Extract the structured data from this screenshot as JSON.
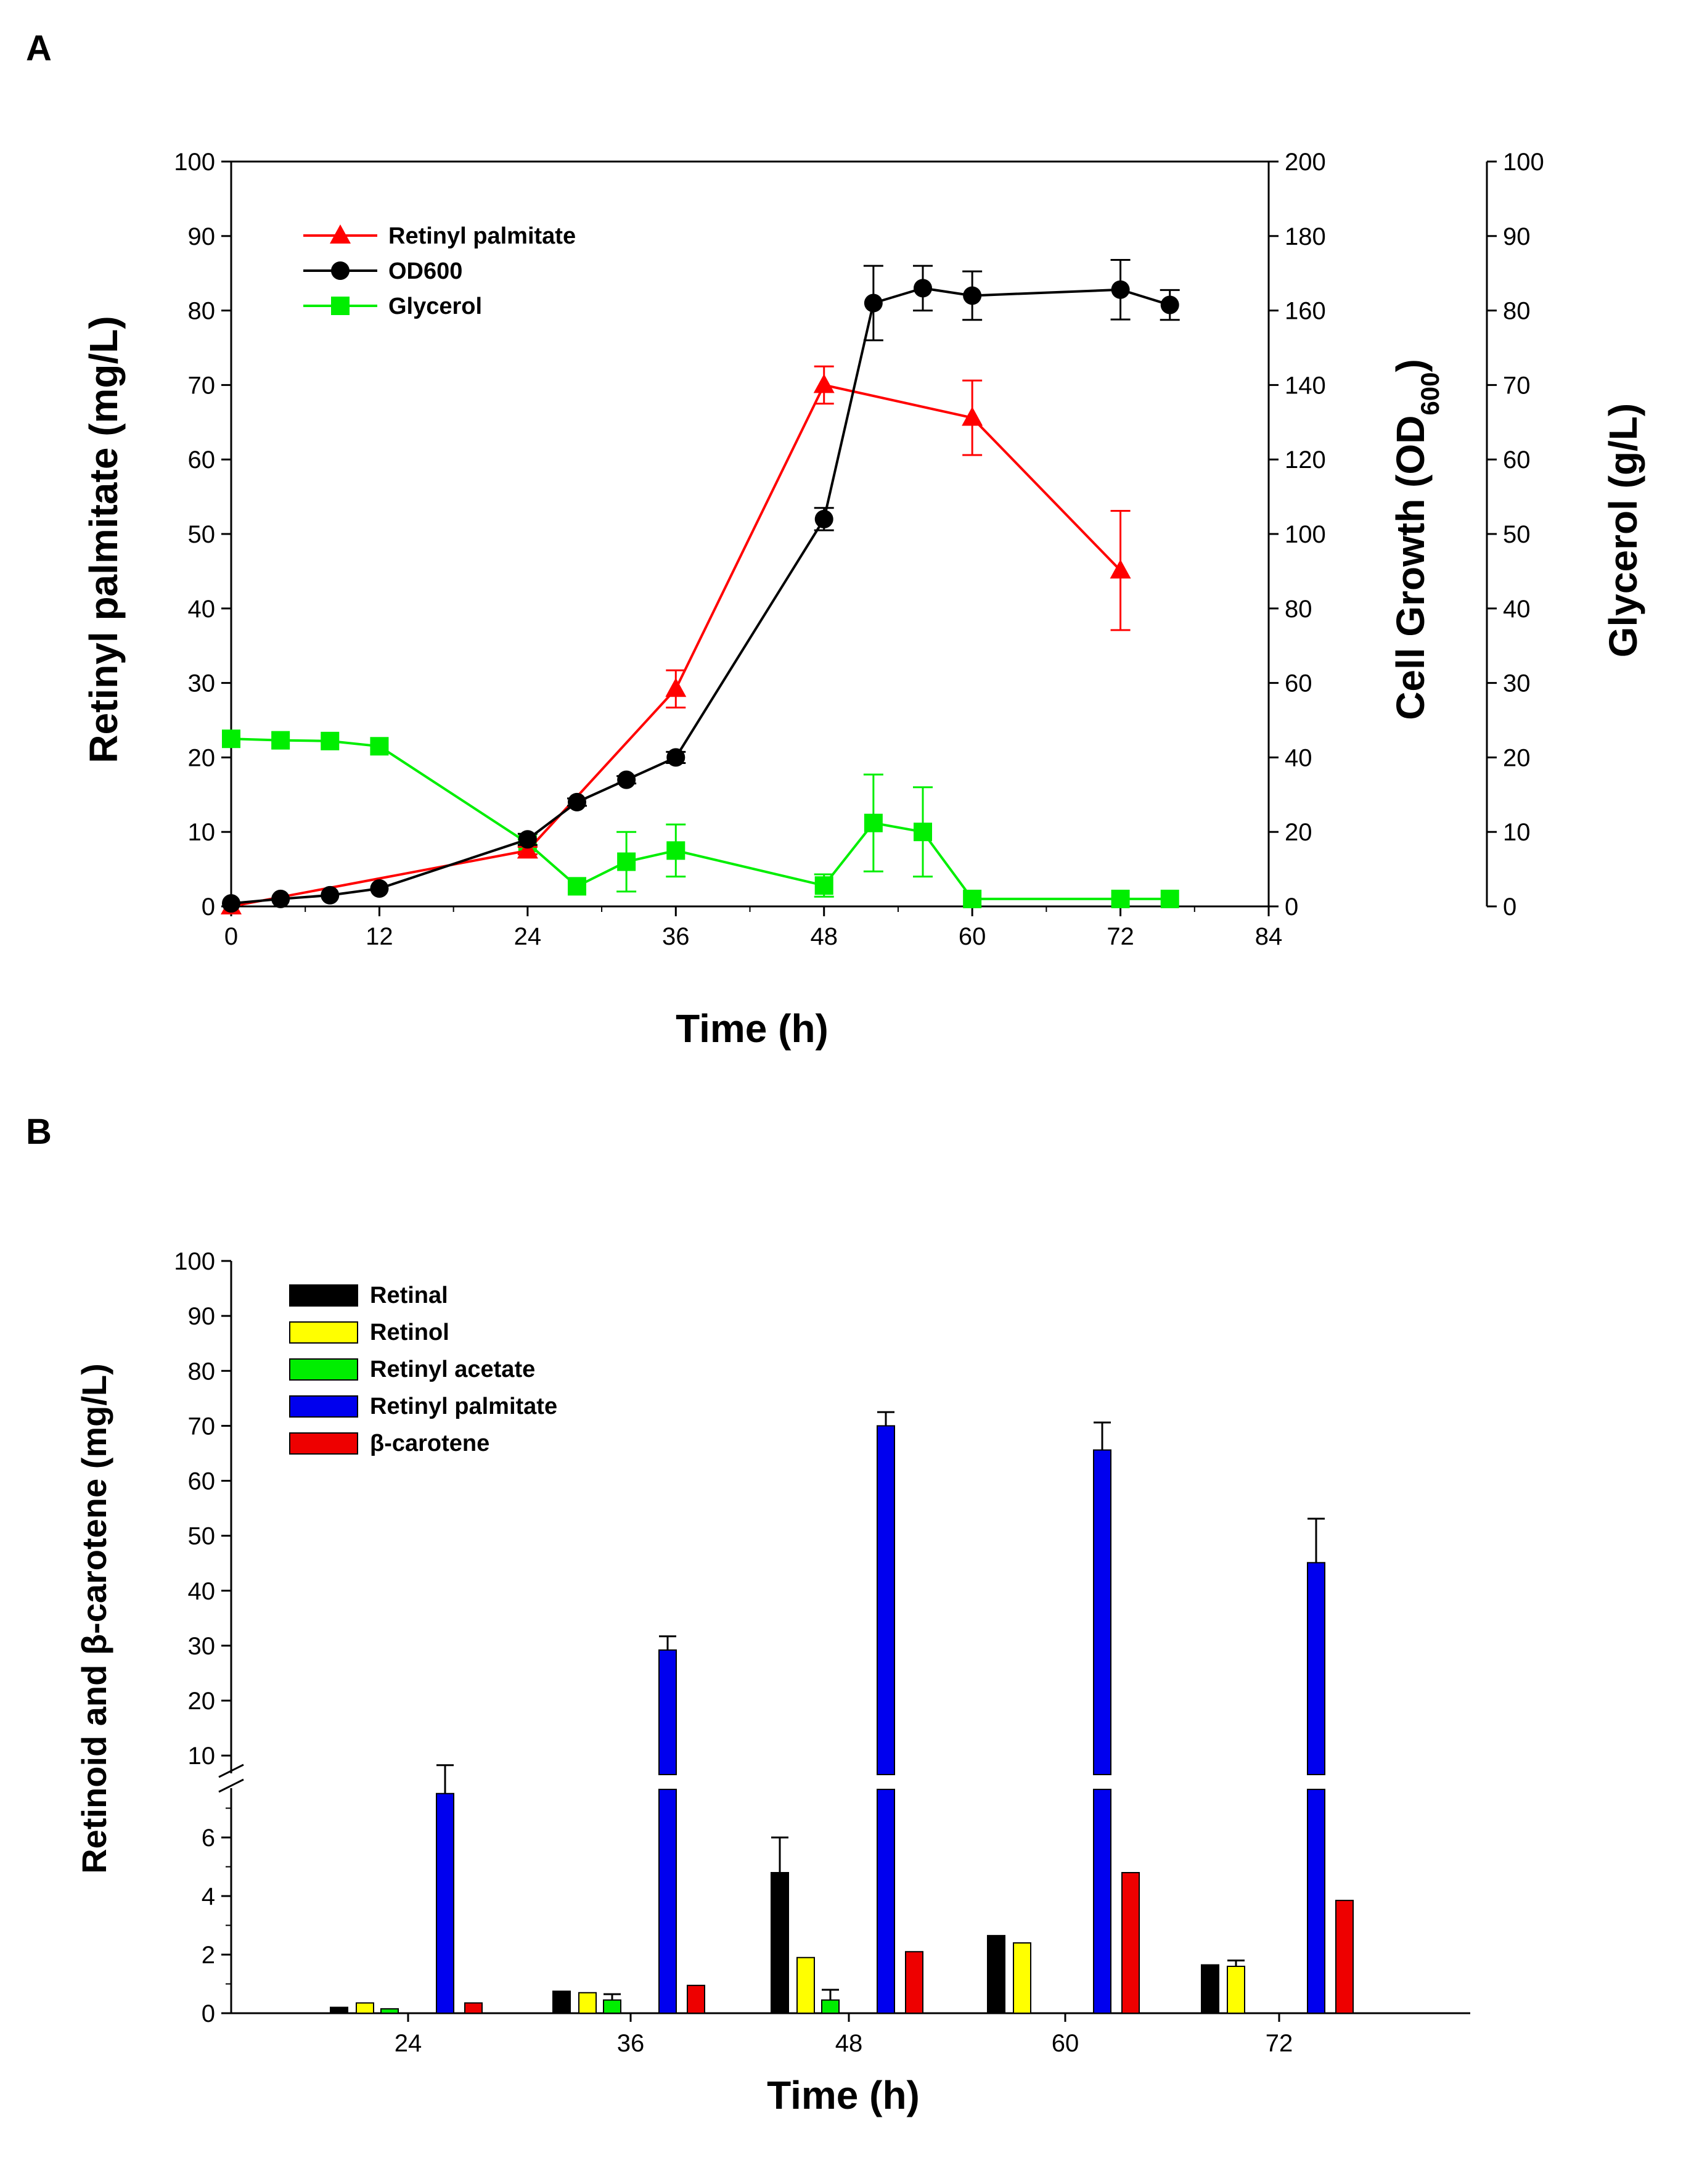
{
  "chart_data": [
    {
      "panel": "A",
      "type": "line",
      "xlabel": "Time (h)",
      "x_ticks": [
        0,
        12,
        24,
        36,
        48,
        60,
        72,
        84
      ],
      "xlim": [
        0,
        84
      ],
      "ylabel_left": "Retinyl palmitate (mg/L)",
      "ylim_left": [
        0,
        100
      ],
      "y_ticks_left": [
        0,
        10,
        20,
        30,
        40,
        50,
        60,
        70,
        80,
        90,
        100
      ],
      "ylabel_right_1": "Cell Growth (OD",
      "ylabel_right_1_sub": "600",
      "ylabel_right_1_end": ")",
      "ylim_right_1": [
        0,
        200
      ],
      "y_ticks_right_1": [
        0,
        20,
        40,
        60,
        80,
        100,
        120,
        140,
        160,
        180,
        200
      ],
      "ylabel_right_2": "Glycerol (g/L)",
      "ylim_right_2": [
        0,
        100
      ],
      "y_ticks_right_2": [
        0,
        10,
        20,
        30,
        40,
        50,
        60,
        70,
        80,
        90,
        100
      ],
      "legend_position": "top-left",
      "series": [
        {
          "name": "Retinyl palmitate",
          "axis": "left",
          "color": "#ff0000",
          "marker": "triangle",
          "x": [
            0,
            24,
            36,
            48,
            60,
            72
          ],
          "y": [
            0,
            7.5,
            29.2,
            70,
            65.6,
            45.1
          ],
          "err": [
            0,
            0.5,
            2.5,
            2.5,
            5,
            8
          ]
        },
        {
          "name": "OD600",
          "axis": "right1",
          "color": "#000000",
          "marker": "circle",
          "x": [
            0,
            4,
            8,
            12,
            24,
            28,
            32,
            36,
            48,
            52,
            56,
            60,
            72,
            76
          ],
          "y": [
            0.8,
            2,
            3,
            4.8,
            18,
            28,
            34,
            40,
            104,
            162,
            166,
            164,
            165.6,
            161.5
          ],
          "err": [
            0,
            0,
            0,
            0,
            1.5,
            1,
            1,
            1.5,
            3,
            10,
            6,
            6.5,
            8,
            4
          ]
        },
        {
          "name": "Glycerol",
          "axis": "right2",
          "color": "#00ee00",
          "marker": "square",
          "x": [
            0,
            4,
            8,
            12,
            24,
            28,
            32,
            36,
            48,
            52,
            56,
            60,
            72,
            76
          ],
          "y": [
            22.5,
            22.3,
            22.2,
            21.5,
            8.5,
            2.7,
            6,
            7.5,
            2.8,
            11.2,
            10,
            1,
            1,
            1
          ],
          "err": [
            0,
            0,
            0,
            0,
            0.5,
            0,
            4,
            3.5,
            1.5,
            6.5,
            6,
            0,
            0,
            0
          ]
        }
      ]
    },
    {
      "panel": "B",
      "type": "bar",
      "xlabel": "Time (h)",
      "ylabel": "Retinoid and β-carotene (mg/L)",
      "categories": [
        "24",
        "36",
        "48",
        "60",
        "72"
      ],
      "y_ticks_lower": [
        0,
        2,
        4,
        6
      ],
      "y_ticks_upper": [
        10,
        20,
        30,
        40,
        50,
        60,
        70,
        80,
        90,
        100
      ],
      "ylim_lower": [
        0,
        8
      ],
      "ylim_upper": [
        8,
        100
      ],
      "axis_break": "between 8 and 10",
      "legend_position": "top-left",
      "series": [
        {
          "name": "Retinal",
          "color": "#000000",
          "values": [
            0.2,
            0.75,
            4.8,
            2.65,
            1.65
          ],
          "err": [
            0,
            0,
            1.2,
            0,
            0
          ]
        },
        {
          "name": "Retinol",
          "color": "#ffff00",
          "values": [
            0.35,
            0.7,
            1.9,
            2.4,
            1.6
          ],
          "err": [
            0,
            0,
            0,
            0,
            0.2
          ]
        },
        {
          "name": "Retinyl acetate",
          "color": "#00ee00",
          "values": [
            0.15,
            0.45,
            0.45,
            0,
            0
          ],
          "err": [
            0,
            0.2,
            0.35,
            0,
            0
          ]
        },
        {
          "name": "Retinyl palmitate",
          "color": "#0000ee",
          "values": [
            7.5,
            29.2,
            70,
            65.6,
            45.1
          ],
          "err": [
            0.75,
            2.5,
            2.5,
            5,
            8
          ]
        },
        {
          "name": "β-carotene",
          "color": "#ee0000",
          "values": [
            0.35,
            0.95,
            2.1,
            4.8,
            3.85
          ],
          "err": [
            0,
            0,
            0,
            0,
            0
          ]
        }
      ]
    }
  ]
}
